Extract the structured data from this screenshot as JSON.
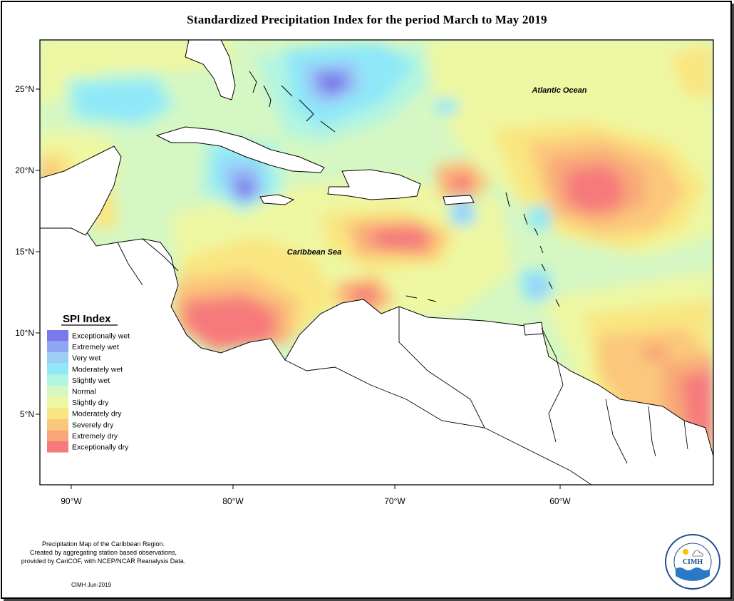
{
  "title": "Standardized Precipitation Index for the period March to May 2019",
  "map": {
    "lat_ticks": [
      "25°N",
      "20°N",
      "15°N",
      "10°N",
      "5°N"
    ],
    "lon_ticks": [
      "90°W",
      "80°W",
      "70°W",
      "60°W"
    ],
    "labels": {
      "atlantic": "Atlantic Ocean",
      "caribbean": "Caribbean Sea"
    }
  },
  "legend": {
    "title": "SPI Index",
    "items": [
      {
        "label": "Exceptionally wet",
        "color": "#7b78ec"
      },
      {
        "label": "Extremely wet",
        "color": "#8fa6f2"
      },
      {
        "label": "Very wet",
        "color": "#9ccef8"
      },
      {
        "label": "Moderately wet",
        "color": "#8ee8f8"
      },
      {
        "label": "Slightly wet",
        "color": "#b2f5e0"
      },
      {
        "label": "Normal",
        "color": "#d5f7c3"
      },
      {
        "label": "Slightly dry",
        "color": "#eef7a2"
      },
      {
        "label": "Moderately dry",
        "color": "#f9e680"
      },
      {
        "label": "Severely dry",
        "color": "#fbc77c"
      },
      {
        "label": "Extremely dry",
        "color": "#f8a878"
      },
      {
        "label": "Exceptionally dry",
        "color": "#f67a7c"
      }
    ]
  },
  "footer": {
    "lines": [
      "Precipitation Map of the Caribbean Region.",
      "Created by aggregating station based observations,",
      "provided by CariCOF, with NCEP/NCAR Reanalysis Data."
    ],
    "credit": "CIMH Jun-2019"
  },
  "logo": {
    "text": "CIMH",
    "ring_text": "Caribbean Institute for Meteorology and Hydrology"
  }
}
